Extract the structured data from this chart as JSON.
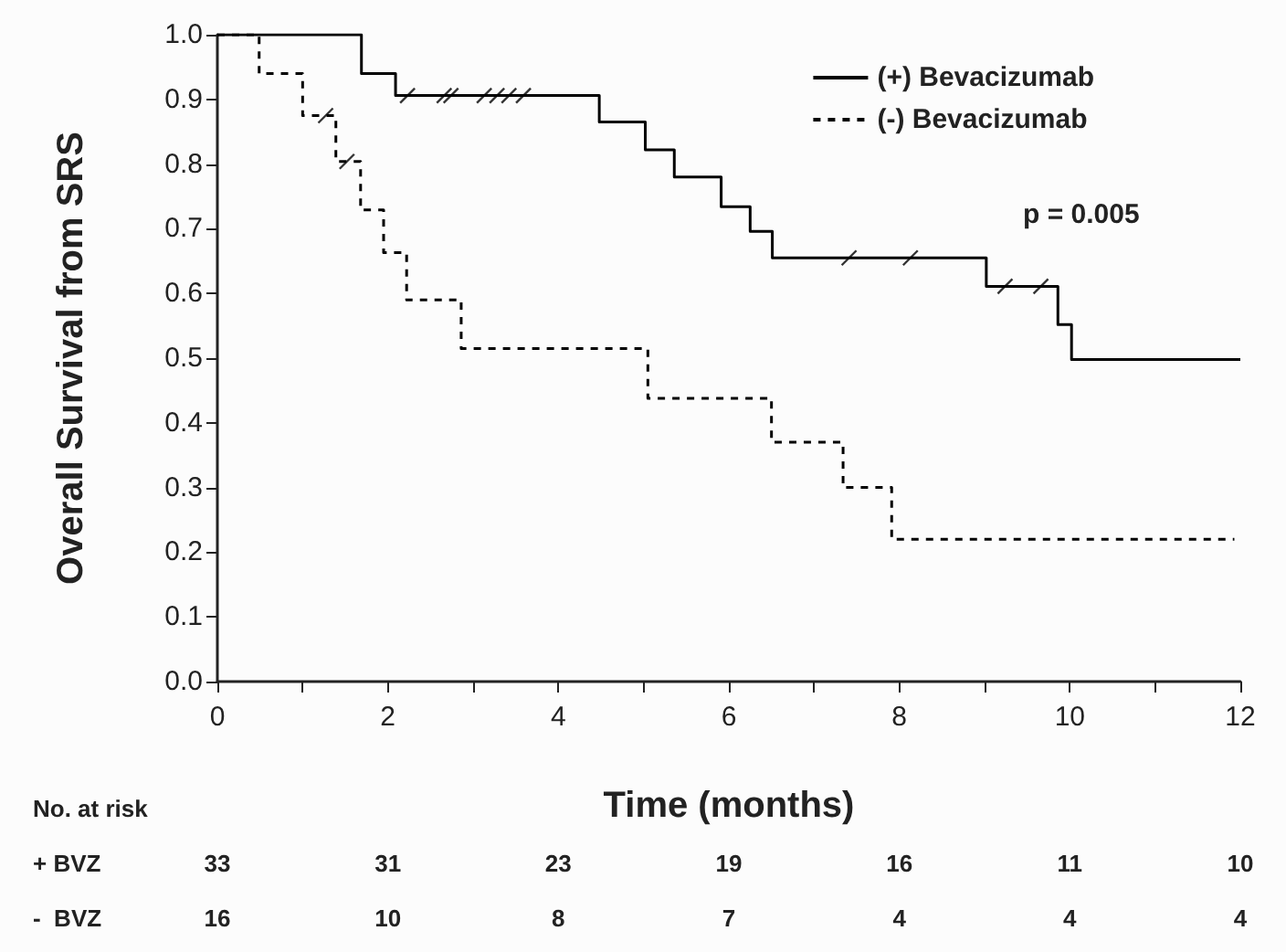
{
  "chart_data": {
    "type": "step",
    "ylabel": "Overall Survival from SRS",
    "xlabel": "Time (months)",
    "xlim": [
      0,
      12
    ],
    "ylim": [
      0,
      1
    ],
    "xticks": [
      0,
      {
        "value": 1,
        "label": null
      },
      2,
      {
        "value": 3,
        "label": null
      },
      4,
      {
        "value": 5,
        "label": null
      },
      6,
      {
        "value": 7,
        "label": null
      },
      8,
      {
        "value": 9,
        "label": null
      },
      10,
      {
        "value": 11,
        "label": null
      },
      12
    ],
    "yticks": [
      {
        "value": 0,
        "label": "0.0"
      },
      {
        "value": 0.1,
        "label": "0.1"
      },
      {
        "value": 0.2,
        "label": "0.2"
      },
      {
        "value": 0.3,
        "label": "0.3"
      },
      {
        "value": 0.4,
        "label": "0.4"
      },
      {
        "value": 0.5,
        "label": "0.5"
      },
      {
        "value": 0.6,
        "label": "0.6"
      },
      {
        "value": 0.7,
        "label": "0.7"
      },
      {
        "value": 0.8,
        "label": "0.8"
      },
      {
        "value": 0.9,
        "label": "0.9"
      },
      {
        "value": 1,
        "label": "1.0"
      }
    ],
    "grid": false,
    "legend": "top right",
    "series": [
      {
        "name": "(+) Bevacizumab",
        "color": "#000000",
        "line_style": "solid",
        "x": [
          0,
          1.69,
          2.09,
          4.48,
          5.02,
          5.36,
          5.91,
          6.25,
          6.51,
          9.02,
          9.86,
          10.02,
          12
        ],
        "values": [
          1,
          0.94,
          0.906,
          0.865,
          0.822,
          0.78,
          0.734,
          0.696,
          0.655,
          0.611,
          0.552,
          0.498,
          0.498
        ]
      },
      {
        "name": "(-) Bevacizumab",
        "color": "#000000",
        "line_style": "dashed",
        "x": [
          0,
          0.49,
          1.0,
          1.39,
          1.68,
          1.95,
          2.22,
          2.86,
          5.05,
          6.5,
          7.34,
          7.91,
          11.93
        ],
        "values": [
          1,
          0.94,
          0.875,
          0.804,
          0.729,
          0.663,
          0.59,
          0.515,
          0.438,
          0.37,
          0.3,
          0.22,
          0.22
        ]
      },
      {
        "type": "scatter",
        "color": "#000000",
        "x": [
          2.23,
          2.66,
          2.74,
          3.13,
          3.28,
          3.42,
          3.59,
          7.41,
          8.13,
          9.24,
          9.66
        ],
        "values": [
          0.906,
          0.906,
          0.906,
          0.906,
          0.906,
          0.906,
          0.906,
          0.655,
          0.655,
          0.611,
          0.611
        ]
      },
      {
        "type": "scatter",
        "color": "#000000",
        "x": [
          1.27,
          1.52
        ],
        "values": [
          0.875,
          0.804
        ]
      }
    ],
    "annotations": [
      "p = 0.005",
      "No. at risk",
      "+ BVZ",
      "33",
      "31",
      "23",
      "19",
      "16",
      "11",
      "10",
      "-  BVZ",
      "16",
      "10",
      "8",
      "7",
      "4",
      "4",
      "4"
    ]
  }
}
